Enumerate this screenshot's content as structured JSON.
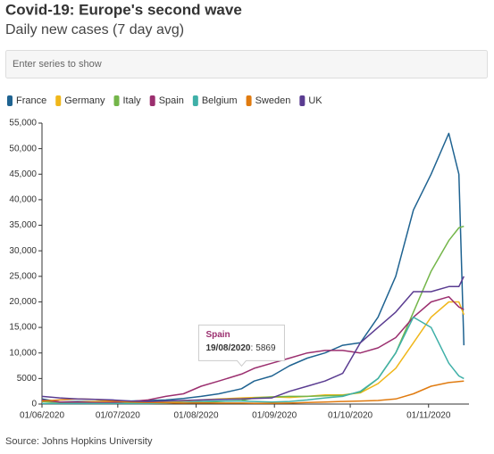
{
  "chart_data": {
    "type": "line",
    "title": "Covid-19: Europe's second wave",
    "subtitle": "Daily new cases (7 day avg)",
    "search_placeholder": "Enter series to show",
    "source": "Source: Johns Hopkins University",
    "x": [
      "01/06/2020",
      "08/06/2020",
      "15/06/2020",
      "22/06/2020",
      "29/06/2020",
      "06/07/2020",
      "13/07/2020",
      "20/07/2020",
      "27/07/2020",
      "03/08/2020",
      "10/08/2020",
      "19/08/2020",
      "24/08/2020",
      "31/08/2020",
      "07/09/2020",
      "14/09/2020",
      "21/09/2020",
      "28/09/2020",
      "05/10/2020",
      "12/10/2020",
      "19/10/2020",
      "26/10/2020",
      "02/11/2020",
      "09/11/2020",
      "13/11/2020",
      "15/11/2020"
    ],
    "series": [
      {
        "name": "France",
        "color": "#1f6391",
        "values": [
          1000,
          400,
          500,
          500,
          600,
          600,
          700,
          800,
          1100,
          1500,
          2000,
          3000,
          4500,
          5500,
          7500,
          9000,
          10000,
          11500,
          12000,
          17000,
          25000,
          38000,
          45000,
          53000,
          45000,
          11500
        ]
      },
      {
        "name": "Germany",
        "color": "#f0b71b",
        "values": [
          500,
          400,
          400,
          500,
          500,
          400,
          400,
          500,
          600,
          800,
          1000,
          1200,
          1300,
          1400,
          1300,
          1500,
          1800,
          1800,
          2200,
          4000,
          7000,
          12000,
          17000,
          20000,
          20000,
          17500
        ]
      },
      {
        "name": "Italy",
        "color": "#74b64a",
        "values": [
          500,
          300,
          300,
          250,
          200,
          200,
          200,
          250,
          300,
          350,
          500,
          700,
          1200,
          1400,
          1500,
          1500,
          1600,
          1700,
          2300,
          5000,
          10000,
          18000,
          26000,
          32000,
          34500,
          34800
        ]
      },
      {
        "name": "Spain",
        "color": "#9b2f6f",
        "values": [
          800,
          400,
          400,
          300,
          300,
          500,
          800,
          1500,
          2000,
          3500,
          4500,
          5869,
          7000,
          8000,
          9000,
          10000,
          10500,
          10500,
          10000,
          11000,
          13000,
          17000,
          20000,
          21000,
          19000,
          18500
        ]
      },
      {
        "name": "Belgium",
        "color": "#3fb0a8",
        "values": [
          100,
          100,
          100,
          100,
          100,
          100,
          100,
          150,
          300,
          500,
          600,
          600,
          500,
          400,
          500,
          800,
          1200,
          1500,
          2500,
          5000,
          10000,
          17000,
          15000,
          8000,
          5500,
          5000
        ]
      },
      {
        "name": "Sweden",
        "color": "#e07b10",
        "values": [
          600,
          800,
          1000,
          900,
          600,
          400,
          300,
          250,
          200,
          250,
          200,
          200,
          150,
          150,
          200,
          300,
          400,
          500,
          600,
          700,
          1000,
          2000,
          3500,
          4200,
          4400,
          4500
        ]
      },
      {
        "name": "UK",
        "color": "#5a3c91",
        "values": [
          1500,
          1200,
          1000,
          900,
          800,
          600,
          500,
          600,
          700,
          800,
          900,
          1000,
          1100,
          1200,
          2500,
          3500,
          4500,
          6000,
          12000,
          15000,
          18000,
          22000,
          22000,
          23000,
          23000,
          25000
        ]
      }
    ],
    "xlim": [
      "01/06/2020",
      "17/11/2020"
    ],
    "xticks": [
      "01/06/2020",
      "01/07/2020",
      "01/08/2020",
      "01/09/2020",
      "01/10/2020",
      "01/11/2020"
    ],
    "ylim": [
      0,
      55000
    ],
    "yticks": [
      0,
      5000,
      {
        "value": 10000,
        "label": "10,000"
      },
      {
        "value": 15000,
        "label": "15,000"
      },
      {
        "value": 20000,
        "label": "20,000"
      },
      {
        "value": 25000,
        "label": "25,000"
      },
      {
        "value": 30000,
        "label": "30,000"
      },
      {
        "value": 35000,
        "label": "35,000"
      },
      {
        "value": 40000,
        "label": "40,000"
      },
      {
        "value": 45000,
        "label": "45,000"
      },
      {
        "value": 50000,
        "label": "50,000"
      },
      {
        "value": 55000,
        "label": "55,000"
      }
    ],
    "grid": false,
    "tooltip": {
      "name": "Spain",
      "date": "19/08/2020",
      "value": 5869
    }
  }
}
